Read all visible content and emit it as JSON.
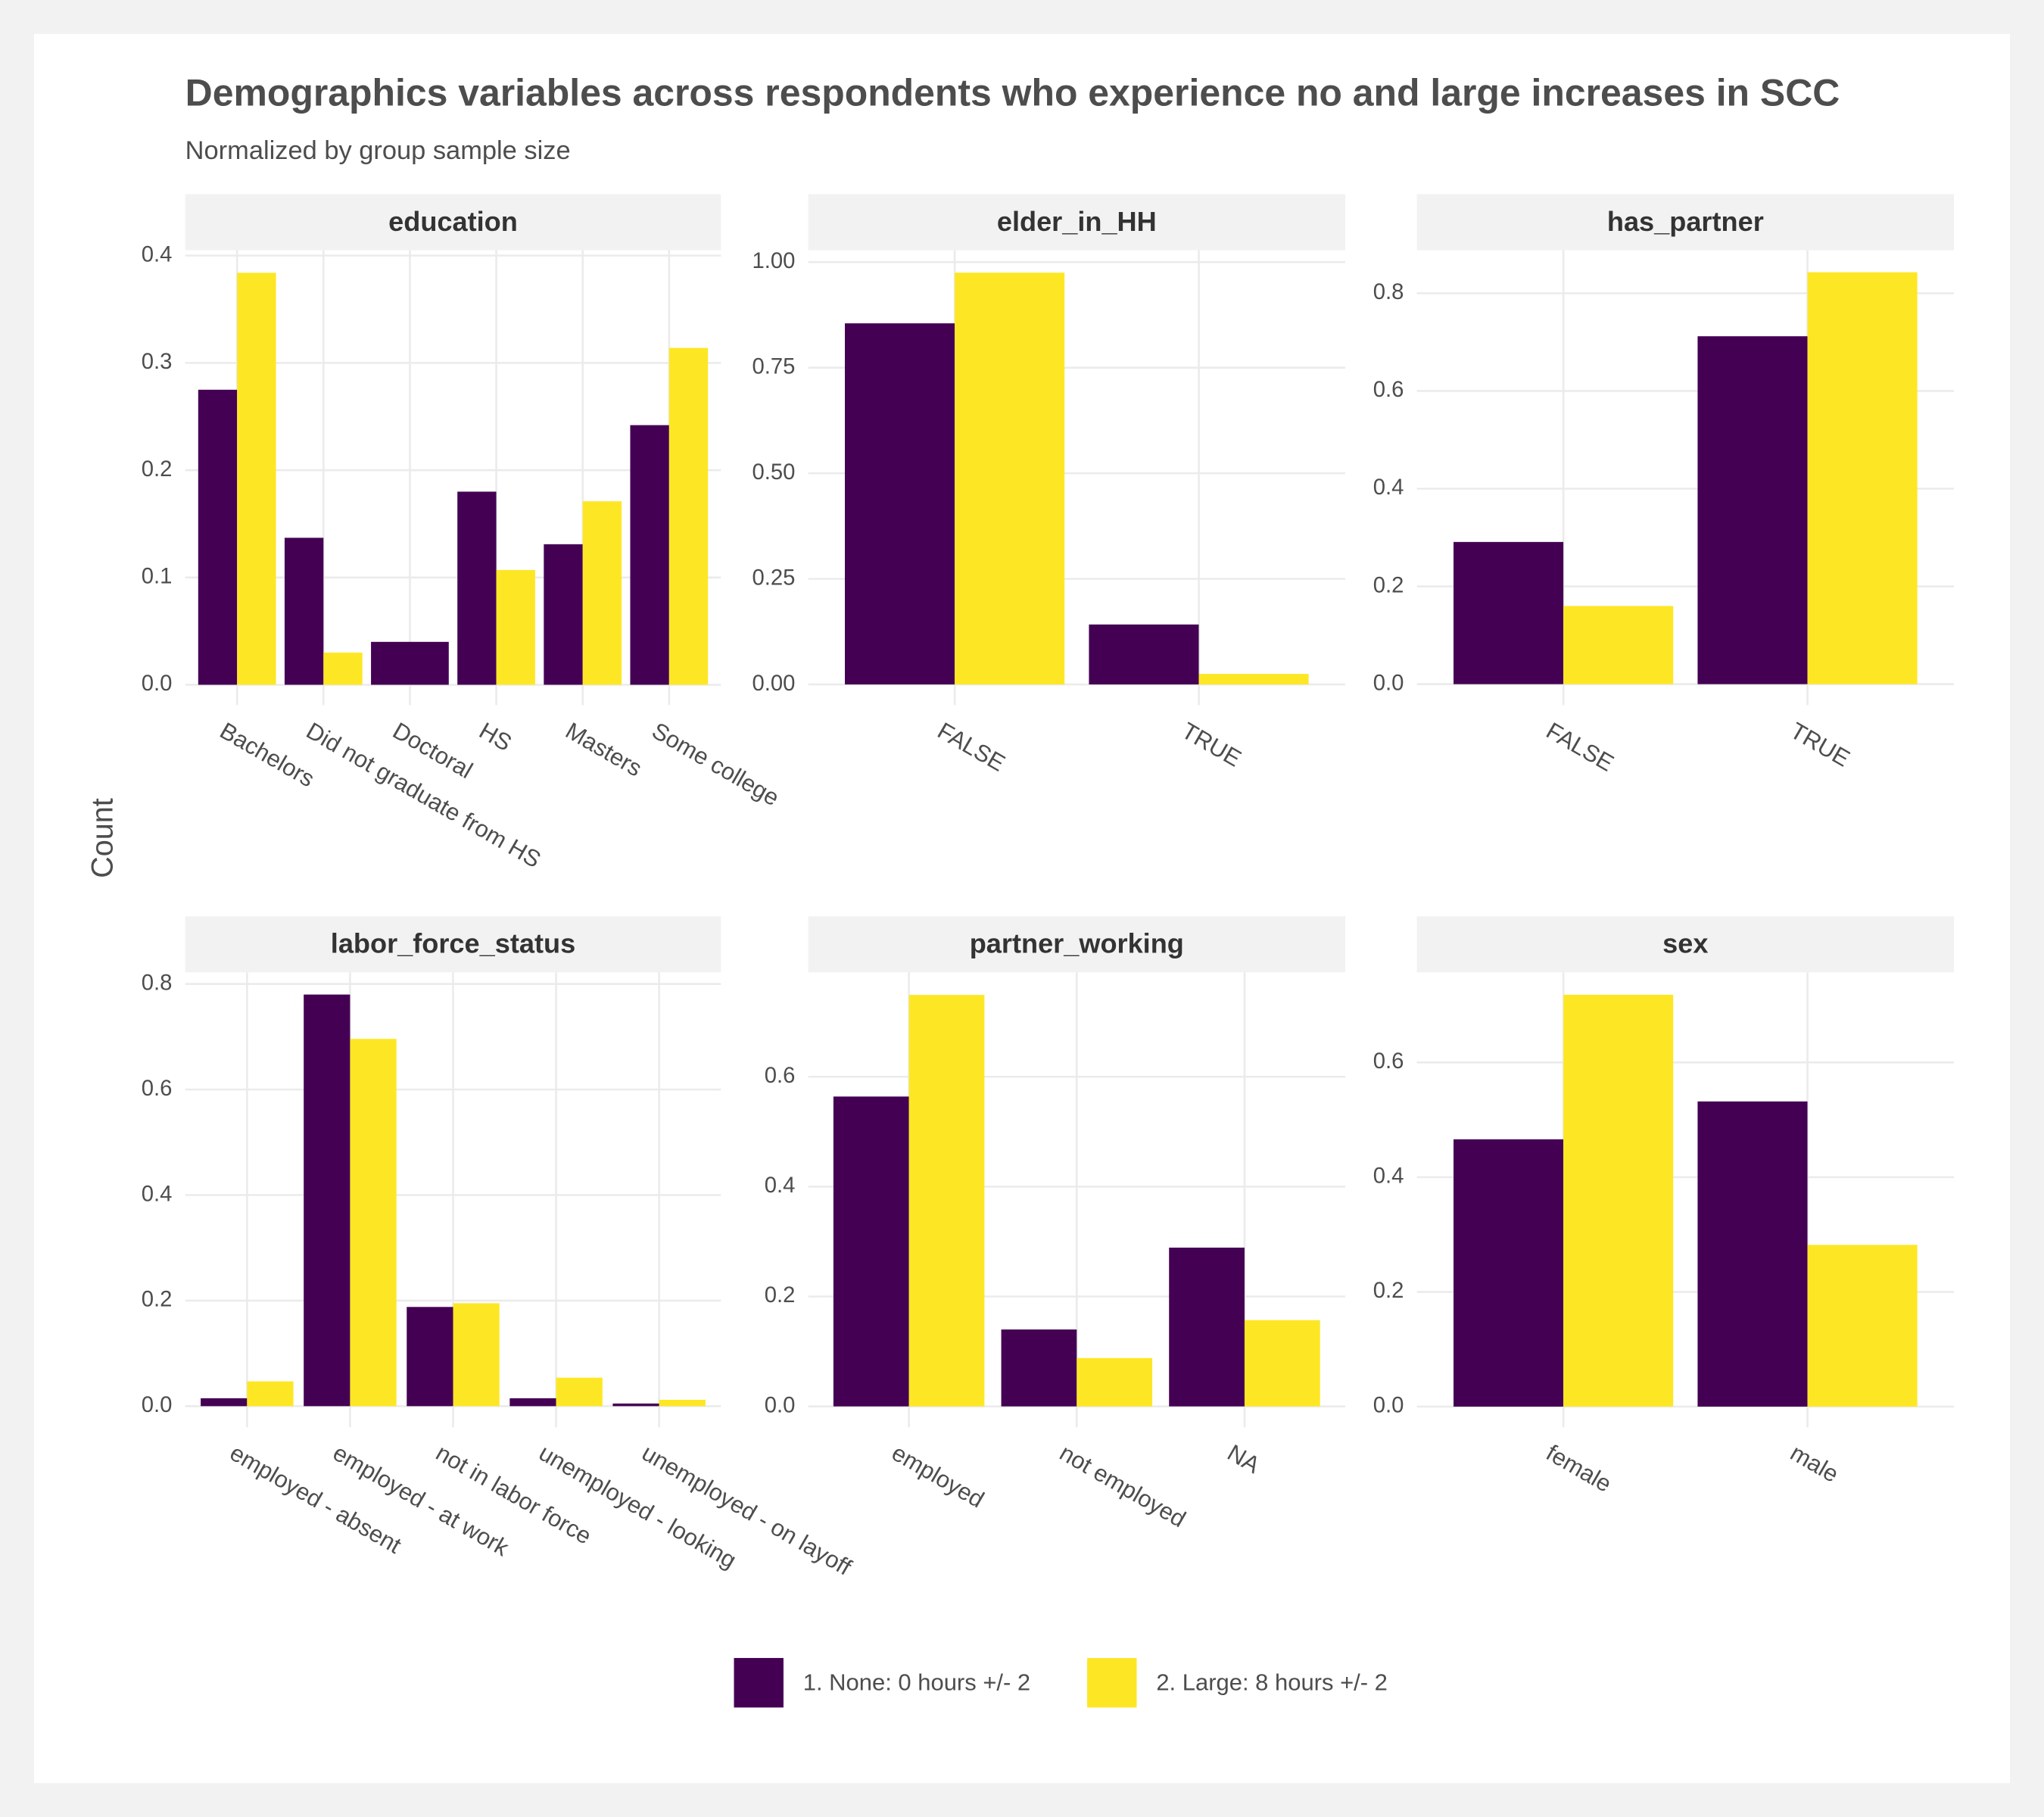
{
  "title": "Demographics variables across respondents who experience no and large increases in SCC",
  "subtitle": "Normalized by group sample size",
  "ylabel": "Count",
  "chart_data": [
    {
      "type": "bar",
      "title": "education",
      "categories": [
        "Bachelors",
        "Did not graduate from HS",
        "Doctoral",
        "HS",
        "Masters",
        "Some college"
      ],
      "series": [
        {
          "name": "1. None: 0 hours +/- 2",
          "color": "#440154",
          "values": [
            0.275,
            0.137,
            0.04,
            0.18,
            0.131,
            0.242
          ]
        },
        {
          "name": "2. Large: 8 hours +/- 2",
          "color": "#FDE725",
          "values": [
            0.384,
            0.03,
            null,
            0.107,
            0.171,
            0.314
          ]
        }
      ],
      "ylim": [
        -0.019,
        0.405
      ],
      "yticks": [
        {
          "value": 0,
          "label": "0.0"
        },
        0.1,
        0.2,
        0.3,
        0.4
      ]
    },
    {
      "type": "bar",
      "title": "elder_in_HH",
      "categories": [
        "FALSE",
        "TRUE"
      ],
      "series": [
        {
          "name": "1. None: 0 hours +/- 2",
          "color": "#440154",
          "values": [
            0.855,
            0.142
          ]
        },
        {
          "name": "2. Large: 8 hours +/- 2",
          "color": "#FDE725",
          "values": [
            0.975,
            0.025
          ]
        }
      ],
      "ylim": [
        -0.049,
        1.028
      ],
      "yticks": [
        {
          "value": 0,
          "label": "0.00"
        },
        0.25,
        {
          "value": 0.5,
          "label": "0.50"
        },
        0.75,
        {
          "value": 1,
          "label": "1.00"
        }
      ]
    },
    {
      "type": "bar",
      "title": "has_partner",
      "categories": [
        "FALSE",
        "TRUE"
      ],
      "series": [
        {
          "name": "1. None: 0 hours +/- 2",
          "color": "#440154",
          "values": [
            0.291,
            0.712
          ]
        },
        {
          "name": "2. Large: 8 hours +/- 2",
          "color": "#FDE725",
          "values": [
            0.16,
            0.843
          ]
        }
      ],
      "ylim": [
        -0.043,
        0.888
      ],
      "yticks": [
        {
          "value": 0,
          "label": "0.0"
        },
        0.2,
        0.4,
        0.6,
        0.8
      ]
    },
    {
      "type": "bar",
      "title": "labor_force_status",
      "categories": [
        "employed - absent",
        "employed - at work",
        "not in labor force",
        "unemployed - looking",
        "unemployed - on layoff"
      ],
      "series": [
        {
          "name": "1. None: 0 hours +/- 2",
          "color": "#440154",
          "values": [
            0.015,
            0.78,
            0.188,
            0.015,
            0.005
          ]
        },
        {
          "name": "2. Large: 8 hours +/- 2",
          "color": "#FDE725",
          "values": [
            0.047,
            0.696,
            0.195,
            0.054,
            0.012
          ]
        }
      ],
      "ylim": [
        -0.04,
        0.822
      ],
      "yticks": [
        {
          "value": 0,
          "label": "0.0"
        },
        0.2,
        0.4,
        0.6,
        0.8
      ]
    },
    {
      "type": "bar",
      "title": "partner_working",
      "categories": [
        "employed",
        "not employed",
        "NA"
      ],
      "series": [
        {
          "name": "1. None: 0 hours +/- 2",
          "color": "#440154",
          "values": [
            0.564,
            0.14,
            0.289
          ]
        },
        {
          "name": "2. Large: 8 hours +/- 2",
          "color": "#FDE725",
          "values": [
            0.749,
            0.088,
            0.157
          ]
        }
      ],
      "ylim": [
        -0.038,
        0.79
      ],
      "yticks": [
        {
          "value": 0,
          "label": "0.0"
        },
        0.2,
        0.4,
        0.6
      ]
    },
    {
      "type": "bar",
      "title": "sex",
      "categories": [
        "female",
        "male"
      ],
      "series": [
        {
          "name": "1. None: 0 hours +/- 2",
          "color": "#440154",
          "values": [
            0.466,
            0.532
          ]
        },
        {
          "name": "2. Large: 8 hours +/- 2",
          "color": "#FDE725",
          "values": [
            0.718,
            0.282
          ]
        }
      ],
      "ylim": [
        -0.036,
        0.757
      ],
      "yticks": [
        {
          "value": 0,
          "label": "0.0"
        },
        0.2,
        0.4,
        0.6
      ]
    }
  ]
}
